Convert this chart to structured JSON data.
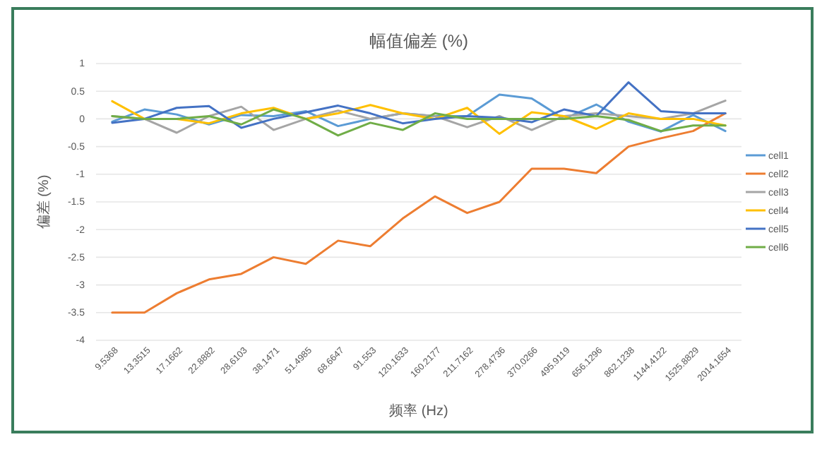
{
  "chart_data": {
    "type": "line",
    "title": "幅值偏差 (%)",
    "xlabel": "频率 (Hz)",
    "ylabel": "偏差 (%)",
    "categories": [
      "9.5368",
      "13.3515",
      "17.1662",
      "22.8882",
      "28.6103",
      "38.1471",
      "51.4985",
      "68.6647",
      "91.553",
      "120.1633",
      "160.2177",
      "211.7162",
      "278.4736",
      "370.0266",
      "495.9119",
      "656.1296",
      "862.1238",
      "1144.4122",
      "1525.8829",
      "2014.1654"
    ],
    "series": [
      {
        "name": "cell1",
        "color": "#5b9bd5",
        "values": [
          -0.05,
          0.17,
          0.08,
          -0.1,
          0.07,
          0.05,
          0.14,
          -0.13,
          0.0,
          0.1,
          0.05,
          0.05,
          0.44,
          0.37,
          0.0,
          0.26,
          -0.05,
          -0.23,
          0.07,
          -0.22
        ]
      },
      {
        "name": "cell2",
        "color": "#ed7d31",
        "values": [
          -3.5,
          -3.5,
          -3.15,
          -2.9,
          -2.8,
          -2.5,
          -2.62,
          -2.2,
          -2.3,
          -1.8,
          -1.4,
          -1.7,
          -1.5,
          -0.9,
          -0.9,
          -0.98,
          -0.5,
          -0.35,
          -0.22,
          0.1
        ]
      },
      {
        "name": "cell3",
        "color": "#a5a5a5",
        "values": [
          0.05,
          0.0,
          -0.25,
          0.05,
          0.22,
          -0.2,
          0.0,
          0.15,
          0.0,
          0.1,
          0.05,
          -0.15,
          0.05,
          -0.2,
          0.05,
          0.1,
          0.05,
          0.0,
          0.1,
          0.33
        ]
      },
      {
        "name": "cell4",
        "color": "#ffc000",
        "values": [
          0.32,
          0.0,
          0.0,
          -0.08,
          0.1,
          0.2,
          0.0,
          0.1,
          0.25,
          0.1,
          0.0,
          0.2,
          -0.27,
          0.12,
          0.05,
          -0.18,
          0.1,
          0.0,
          0.0,
          -0.12
        ]
      },
      {
        "name": "cell5",
        "color": "#4472c4",
        "values": [
          -0.07,
          0.0,
          0.2,
          0.23,
          -0.16,
          0.0,
          0.12,
          0.24,
          0.1,
          -0.08,
          0.0,
          0.05,
          0.02,
          -0.06,
          0.17,
          0.05,
          0.66,
          0.14,
          0.1,
          0.1
        ]
      },
      {
        "name": "cell6",
        "color": "#70ad47",
        "values": [
          0.05,
          0.0,
          0.0,
          0.05,
          -0.1,
          0.17,
          0.0,
          -0.3,
          -0.07,
          -0.2,
          0.1,
          0.0,
          0.0,
          0.0,
          0.0,
          0.05,
          -0.02,
          -0.22,
          -0.12,
          -0.12
        ]
      }
    ],
    "ylim": [
      -4,
      1
    ],
    "yticks": [
      -4,
      -3.5,
      -3,
      -2.5,
      -2,
      -1.5,
      -1,
      -0.5,
      0,
      0.5,
      1
    ],
    "grid": "y",
    "legend": "right",
    "marker": "none",
    "line_style": "solid"
  }
}
